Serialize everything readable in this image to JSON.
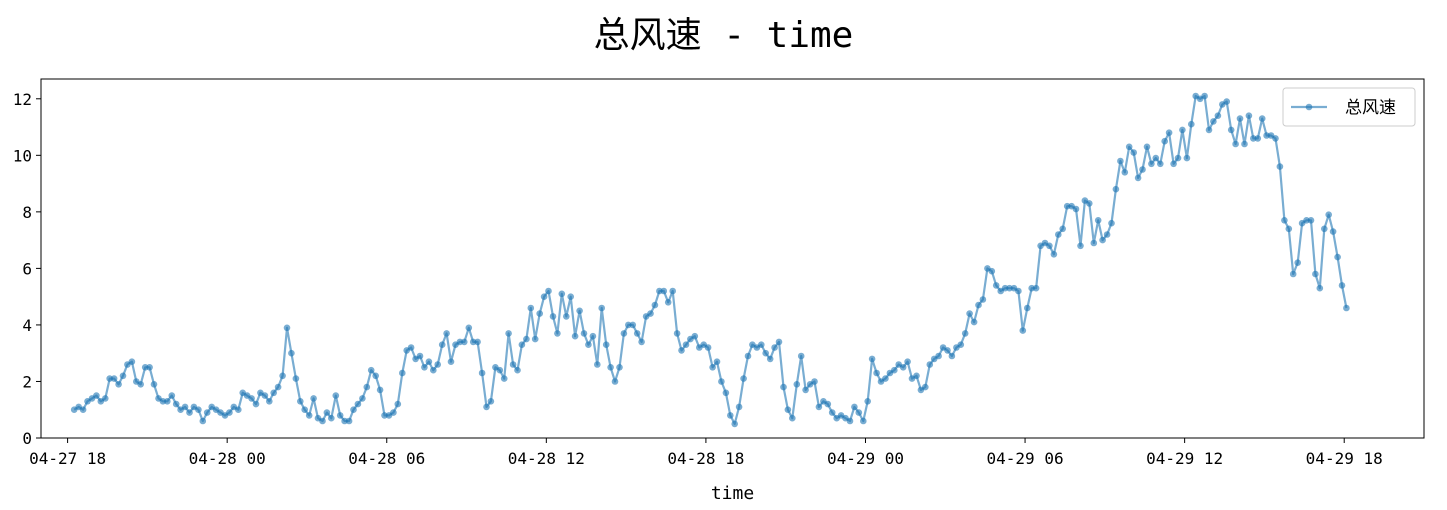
{
  "chart_data": {
    "type": "line",
    "title": "总风速 - time",
    "xlabel": "time",
    "ylabel": "",
    "x_ticks": [
      "04-27 18",
      "04-28 00",
      "04-28 06",
      "04-28 12",
      "04-28 18",
      "04-29 00",
      "04-29 06",
      "04-29 12",
      "04-29 18"
    ],
    "x_range": [
      "04-27 17:00",
      "04-29 21:00"
    ],
    "y_ticks": [
      0,
      2,
      4,
      6,
      8,
      10,
      12
    ],
    "ylim": [
      0,
      12.7
    ],
    "grid": false,
    "legend_position": "upper right",
    "series": [
      {
        "name": "总风速",
        "color": "#1f77b4",
        "marker": "circle",
        "x_start": "04-27 18:15",
        "x_step_minutes": 10,
        "values": [
          1.0,
          1.1,
          1.0,
          1.3,
          1.4,
          1.5,
          1.3,
          1.4,
          2.1,
          2.1,
          1.9,
          2.2,
          2.6,
          2.7,
          2.0,
          1.9,
          2.5,
          2.5,
          1.9,
          1.4,
          1.3,
          1.3,
          1.5,
          1.2,
          1.0,
          1.1,
          0.9,
          1.1,
          1.0,
          0.6,
          0.9,
          1.1,
          1.0,
          0.9,
          0.8,
          0.9,
          1.1,
          1.0,
          1.6,
          1.5,
          1.4,
          1.2,
          1.6,
          1.5,
          1.3,
          1.6,
          1.8,
          2.2,
          3.9,
          3.0,
          2.1,
          1.3,
          1.0,
          0.8,
          1.4,
          0.7,
          0.6,
          0.9,
          0.7,
          1.5,
          0.8,
          0.6,
          0.6,
          1.0,
          1.2,
          1.4,
          1.8,
          2.4,
          2.2,
          1.7,
          0.8,
          0.8,
          0.9,
          1.2,
          2.3,
          3.1,
          3.2,
          2.8,
          2.9,
          2.5,
          2.7,
          2.4,
          2.6,
          3.3,
          3.7,
          2.7,
          3.3,
          3.4,
          3.4,
          3.9,
          3.4,
          3.4,
          2.3,
          1.1,
          1.3,
          2.5,
          2.4,
          2.1,
          3.7,
          2.6,
          2.4,
          3.3,
          3.5,
          4.6,
          3.5,
          4.4,
          5.0,
          5.2,
          4.3,
          3.7,
          5.1,
          4.3,
          5.0,
          3.6,
          4.5,
          3.7,
          3.3,
          3.6,
          2.6,
          4.6,
          3.3,
          2.5,
          2.0,
          2.5,
          3.7,
          4.0,
          4.0,
          3.7,
          3.4,
          4.3,
          4.4,
          4.7,
          5.2,
          5.2,
          4.8,
          5.2,
          3.7,
          3.1,
          3.3,
          3.5,
          3.6,
          3.2,
          3.3,
          3.2,
          2.5,
          2.7,
          2.0,
          1.6,
          0.8,
          0.5,
          1.1,
          2.1,
          2.9,
          3.3,
          3.2,
          3.3,
          3.0,
          2.8,
          3.2,
          3.4,
          1.8,
          1.0,
          0.7,
          1.9,
          2.9,
          1.7,
          1.9,
          2.0,
          1.1,
          1.3,
          1.2,
          0.9,
          0.7,
          0.8,
          0.7,
          0.6,
          1.1,
          0.9,
          0.6,
          1.3,
          2.8,
          2.3,
          2.0,
          2.1,
          2.3,
          2.4,
          2.6,
          2.5,
          2.7,
          2.1,
          2.2,
          1.7,
          1.8,
          2.6,
          2.8,
          2.9,
          3.2,
          3.1,
          2.9,
          3.2,
          3.3,
          3.7,
          4.4,
          4.1,
          4.7,
          4.9,
          6.0,
          5.9,
          5.4,
          5.2,
          5.3,
          5.3,
          5.3,
          5.2,
          3.8,
          4.6,
          5.3,
          5.3,
          6.8,
          6.9,
          6.8,
          6.5,
          7.2,
          7.4,
          8.2,
          8.2,
          8.1,
          6.8,
          8.4,
          8.3,
          6.9,
          7.7,
          7.0,
          7.2,
          7.6,
          8.8,
          9.8,
          9.4,
          10.3,
          10.1,
          9.2,
          9.5,
          10.3,
          9.7,
          9.9,
          9.7,
          10.5,
          10.8,
          9.7,
          9.9,
          10.9,
          9.9,
          11.1,
          12.1,
          12.0,
          12.1,
          10.9,
          11.2,
          11.4,
          11.8,
          11.9,
          10.9,
          10.4,
          11.3,
          10.4,
          11.4,
          10.6,
          10.6,
          11.3,
          10.7,
          10.7,
          10.6,
          9.6,
          7.7,
          7.4,
          5.8,
          6.2,
          7.6,
          7.7,
          7.7,
          5.8,
          5.3,
          7.4,
          7.9,
          7.3,
          6.4,
          5.4,
          4.6
        ]
      }
    ]
  }
}
